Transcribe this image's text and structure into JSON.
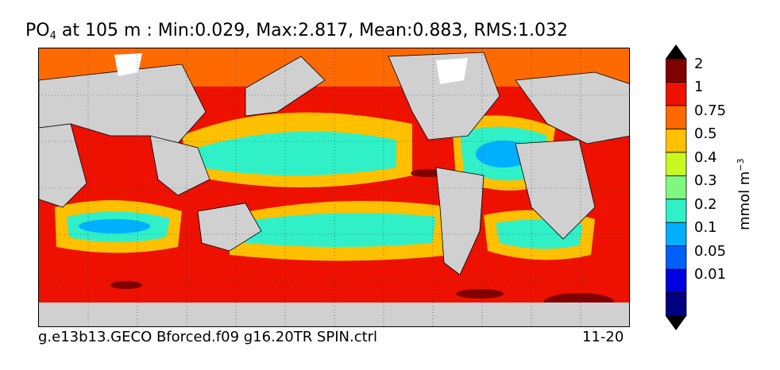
{
  "title": {
    "variable": "PO",
    "subscript": "4",
    "rest": " at 105 m : Min:0.029, Max:2.817, Mean:0.883, RMS:1.032"
  },
  "footer": {
    "run_name": "g.e13b13.GECO Bforced.f09 g16.20TR SPIN.ctrl",
    "years": "11-20"
  },
  "colorbar": {
    "units": "mmol m",
    "units_exponent": "−3",
    "ticks": [
      "2",
      "1",
      "0.75",
      "0.5",
      "0.4",
      "0.3",
      "0.2",
      "0.1",
      "0.05",
      "0.01"
    ],
    "colors": [
      "#000080",
      "#0000e0",
      "#0060ff",
      "#00b0ff",
      "#30f0c8",
      "#80f880",
      "#c8f820",
      "#ffc000",
      "#ff6a00",
      "#ee1100",
      "#800000"
    ]
  }
}
